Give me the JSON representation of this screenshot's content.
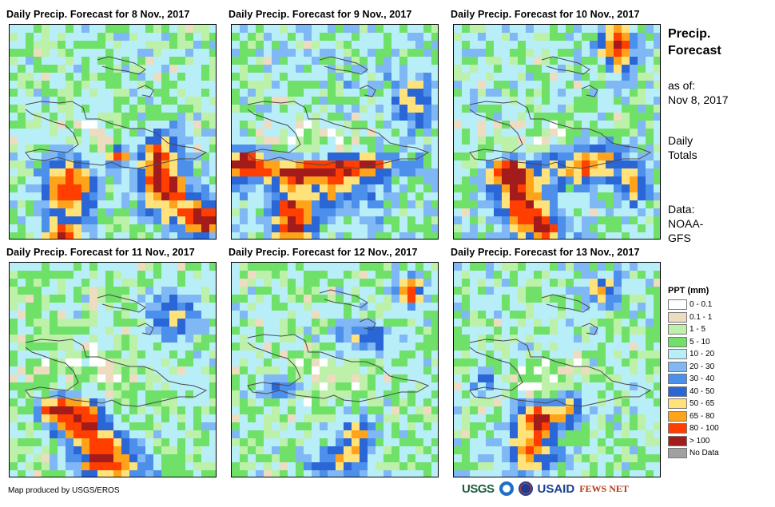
{
  "panels": [
    {
      "title": "Daily Precip. Forecast for 8 Nov., 2017"
    },
    {
      "title": "Daily Precip. Forecast for 9 Nov., 2017"
    },
    {
      "title": "Daily Precip. Forecast for 10 Nov., 2017"
    },
    {
      "title": "Daily Precip. Forecast for 11 Nov., 2017"
    },
    {
      "title": "Daily Precip. Forecast for 12 Nov., 2017"
    },
    {
      "title": "Daily Precip. Forecast for 13 Nov., 2017"
    }
  ],
  "side": {
    "title_line1": "Precip.",
    "title_line2": "Forecast",
    "asof_line1": "as of:",
    "asof_line2": "Nov 8, 2017",
    "totals_line1": "Daily",
    "totals_line2": "Totals",
    "data_line1": "Data:",
    "data_line2": "NOAA-",
    "data_line3": "GFS"
  },
  "legend": {
    "title": "PPT (mm)",
    "items": [
      {
        "label": "0 - 0.1",
        "color": "#ffffff"
      },
      {
        "label": "0.1 - 1",
        "color": "#eddcc0"
      },
      {
        "label": "1 - 5",
        "color": "#bdf0a8"
      },
      {
        "label": "5 - 10",
        "color": "#6fe068"
      },
      {
        "label": "10 - 20",
        "color": "#b8eef8"
      },
      {
        "label": "20 - 30",
        "color": "#7fb8f5"
      },
      {
        "label": "30 - 40",
        "color": "#4d90ec"
      },
      {
        "label": "40 - 50",
        "color": "#2a66d6"
      },
      {
        "label": "50 - 65",
        "color": "#ffe37a"
      },
      {
        "label": "65 - 80",
        "color": "#ffa41a"
      },
      {
        "label": "80 - 100",
        "color": "#ff3e00"
      },
      {
        "label": "> 100",
        "color": "#a31b1b"
      },
      {
        "label": "No Data",
        "color": "#a0a0a0"
      }
    ]
  },
  "credit": "Map produced by USGS/EROS",
  "logos": {
    "usgs": "USGS",
    "usaid": "USAID",
    "fews": "FEWS NET"
  }
}
